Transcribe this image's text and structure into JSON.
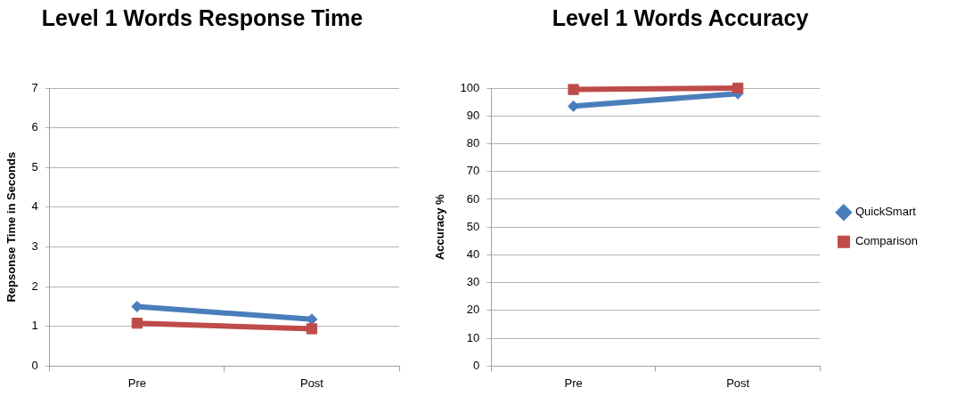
{
  "chart_data": [
    {
      "type": "line",
      "title": "Level 1 Words Response Time",
      "ylabel": "Repsonse Time in Seconds",
      "categories": [
        "Pre",
        "Post"
      ],
      "series": [
        {
          "color": "#4a7ebb",
          "marker": "diamond",
          "values": [
            1.5,
            1.18
          ]
        },
        {
          "color": "#be4b48",
          "marker": "square",
          "values": [
            1.08,
            0.94
          ]
        }
      ],
      "ylim": [
        0,
        7
      ],
      "yticks": [
        0,
        1,
        2,
        3,
        4,
        5,
        6,
        7
      ],
      "grid": "y"
    },
    {
      "type": "line",
      "title": "Level 1 Words Accuracy",
      "ylabel": "Accuracy %",
      "categories": [
        "Pre",
        "Post"
      ],
      "series": [
        {
          "name": "QuickSmart",
          "color": "#4a7ebb",
          "marker": "diamond",
          "values": [
            93.5,
            98
          ]
        },
        {
          "name": "Comparison",
          "color": "#be4b48",
          "marker": "square",
          "values": [
            99.5,
            100
          ]
        }
      ],
      "ylim": [
        0,
        100
      ],
      "yticks": [
        0,
        10,
        20,
        30,
        40,
        50,
        60,
        70,
        80,
        90,
        100
      ],
      "grid": "y",
      "legend": "right"
    }
  ]
}
